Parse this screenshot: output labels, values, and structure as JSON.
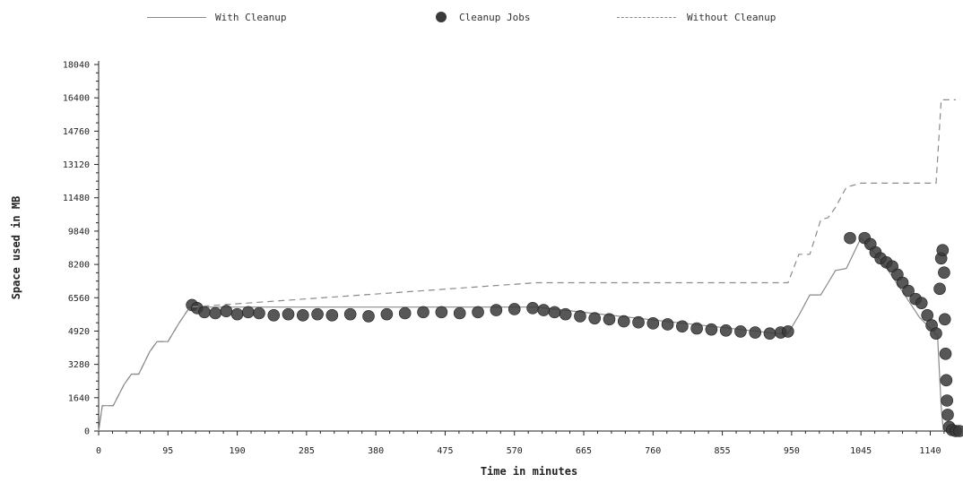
{
  "chart_data": {
    "type": "line",
    "title": "",
    "xlabel": "Time in minutes",
    "ylabel": "Space used in MB",
    "xlim": [
      0,
      1180
    ],
    "ylim": [
      0,
      18040
    ],
    "x_ticks": [
      "0",
      "95",
      "190",
      "285",
      "380",
      "475",
      "570",
      "665",
      "760",
      "855",
      "950",
      "1045",
      "1140"
    ],
    "y_ticks": [
      "0",
      "1640",
      "3280",
      "4920",
      "6560",
      "8200",
      "9840",
      "11480",
      "13120",
      "14760",
      "16400",
      "18040"
    ],
    "legend": {
      "placement": "top"
    },
    "series": [
      {
        "name": "With Cleanup",
        "style": "solid",
        "color": "#8a8a8a",
        "points": [
          [
            0,
            0
          ],
          [
            5,
            1250
          ],
          [
            20,
            1250
          ],
          [
            35,
            2300
          ],
          [
            45,
            2800
          ],
          [
            55,
            2800
          ],
          [
            70,
            3900
          ],
          [
            80,
            4400
          ],
          [
            95,
            4400
          ],
          [
            110,
            5300
          ],
          [
            125,
            6100
          ],
          [
            600,
            6100
          ],
          [
            930,
            4800
          ],
          [
            945,
            4800
          ],
          [
            960,
            5700
          ],
          [
            975,
            6700
          ],
          [
            990,
            6700
          ],
          [
            1000,
            7300
          ],
          [
            1010,
            7900
          ],
          [
            1025,
            8000
          ],
          [
            1045,
            9500
          ],
          [
            1075,
            8300
          ],
          [
            1105,
            6700
          ],
          [
            1125,
            5600
          ],
          [
            1150,
            4700
          ],
          [
            1155,
            1200
          ],
          [
            1158,
            0
          ]
        ]
      },
      {
        "name": "Cleanup Jobs",
        "style": "markers",
        "color": "#3a3a3a",
        "points": [
          [
            128,
            6200
          ],
          [
            135,
            6050
          ],
          [
            145,
            5850
          ],
          [
            160,
            5800
          ],
          [
            175,
            5900
          ],
          [
            190,
            5750
          ],
          [
            205,
            5850
          ],
          [
            220,
            5800
          ],
          [
            240,
            5700
          ],
          [
            260,
            5750
          ],
          [
            280,
            5700
          ],
          [
            300,
            5750
          ],
          [
            320,
            5700
          ],
          [
            345,
            5750
          ],
          [
            370,
            5650
          ],
          [
            395,
            5750
          ],
          [
            420,
            5800
          ],
          [
            445,
            5850
          ],
          [
            470,
            5850
          ],
          [
            495,
            5800
          ],
          [
            520,
            5850
          ],
          [
            545,
            5950
          ],
          [
            570,
            6000
          ],
          [
            595,
            6050
          ],
          [
            610,
            5950
          ],
          [
            625,
            5850
          ],
          [
            640,
            5750
          ],
          [
            660,
            5650
          ],
          [
            680,
            5550
          ],
          [
            700,
            5500
          ],
          [
            720,
            5400
          ],
          [
            740,
            5350
          ],
          [
            760,
            5300
          ],
          [
            780,
            5250
          ],
          [
            800,
            5150
          ],
          [
            820,
            5050
          ],
          [
            840,
            5000
          ],
          [
            860,
            4950
          ],
          [
            880,
            4900
          ],
          [
            900,
            4850
          ],
          [
            920,
            4800
          ],
          [
            935,
            4850
          ],
          [
            945,
            4900
          ],
          [
            1030,
            9500
          ],
          [
            1050,
            9500
          ],
          [
            1058,
            9200
          ],
          [
            1065,
            8800
          ],
          [
            1072,
            8500
          ],
          [
            1080,
            8300
          ],
          [
            1088,
            8100
          ],
          [
            1095,
            7700
          ],
          [
            1102,
            7300
          ],
          [
            1110,
            6900
          ],
          [
            1120,
            6500
          ],
          [
            1128,
            6300
          ],
          [
            1136,
            5700
          ],
          [
            1142,
            5200
          ],
          [
            1148,
            4800
          ],
          [
            1153,
            7000
          ],
          [
            1155,
            8500
          ],
          [
            1157,
            8900
          ],
          [
            1159,
            7800
          ],
          [
            1160,
            5500
          ],
          [
            1161,
            3800
          ],
          [
            1162,
            2500
          ],
          [
            1163,
            1500
          ],
          [
            1164,
            800
          ],
          [
            1166,
            200
          ],
          [
            1170,
            50
          ],
          [
            1175,
            0
          ],
          [
            1180,
            0
          ]
        ]
      },
      {
        "name": "Without Cleanup",
        "style": "dashed",
        "color": "#8a8a8a",
        "points": [
          [
            0,
            0
          ],
          [
            5,
            1250
          ],
          [
            20,
            1250
          ],
          [
            35,
            2300
          ],
          [
            45,
            2800
          ],
          [
            55,
            2800
          ],
          [
            70,
            3900
          ],
          [
            80,
            4400
          ],
          [
            95,
            4400
          ],
          [
            110,
            5300
          ],
          [
            125,
            6100
          ],
          [
            600,
            7300
          ],
          [
            930,
            7300
          ],
          [
            945,
            7300
          ],
          [
            960,
            8700
          ],
          [
            975,
            8700
          ],
          [
            990,
            10400
          ],
          [
            1000,
            10500
          ],
          [
            1010,
            11000
          ],
          [
            1025,
            12000
          ],
          [
            1045,
            12200
          ],
          [
            1148,
            12200
          ],
          [
            1155,
            16300
          ],
          [
            1175,
            16300
          ]
        ]
      }
    ]
  },
  "legend_items": {
    "with_cleanup": "With Cleanup",
    "cleanup_jobs": "Cleanup Jobs",
    "without_cleanup": "Without Cleanup"
  }
}
